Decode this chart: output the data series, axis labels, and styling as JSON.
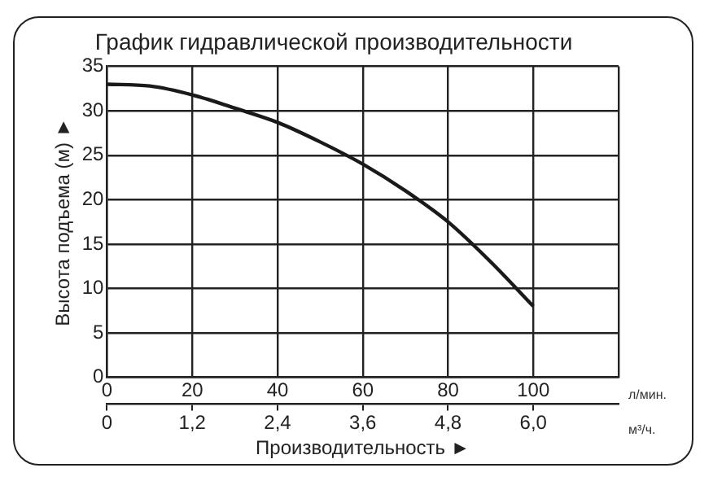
{
  "chart_data": {
    "type": "line",
    "title": "График гидравлической производительности",
    "xlabel": "Производительность ►",
    "ylabel": "Высота подъема (м) ►",
    "x": [
      0,
      10,
      20,
      30,
      40,
      50,
      60,
      70,
      80,
      90,
      100
    ],
    "series": [
      {
        "color": "#1a1a1a",
        "values": [
          33,
          32.8,
          31.8,
          30.3,
          28.7,
          26.5,
          24,
          21,
          17.5,
          13,
          8
        ]
      }
    ],
    "xlim": [
      0,
      120
    ],
    "xticks": [
      0,
      20,
      40,
      60,
      80,
      100,
      {
        "value": 120,
        "label": null
      }
    ],
    "x2lim": [
      0,
      7.2
    ],
    "x2ticks": [
      0,
      {
        "value": 1.2,
        "label": "1,2"
      },
      {
        "value": 2.4,
        "label": "2,4"
      },
      {
        "value": 3.6,
        "label": "3,6"
      },
      {
        "value": 4.8,
        "label": "4,8"
      },
      {
        "value": 6,
        "label": "6,0"
      }
    ],
    "ylim": [
      0,
      35
    ],
    "yticks": [
      0,
      5,
      10,
      15,
      20,
      25,
      30,
      35
    ],
    "annotations": [
      "л/мин.",
      "м³/ч."
    ],
    "grid": true,
    "legend": false,
    "marker": "none",
    "line_style": "solid"
  }
}
